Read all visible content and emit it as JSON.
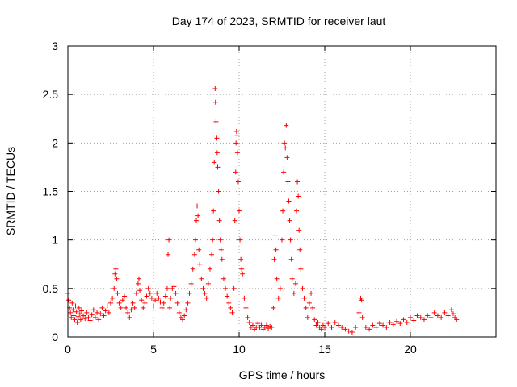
{
  "chart_data": {
    "type": "scatter",
    "title": "Day 174 of 2023, SRMTID for receiver laut",
    "xlabel": "GPS time / hours",
    "ylabel": "SRMTID / TECUs",
    "xlim": [
      0,
      25
    ],
    "ylim": [
      0,
      3
    ],
    "xticks": [
      0,
      5,
      10,
      15,
      20
    ],
    "xtick_labels": [
      "0",
      "5",
      "10",
      "15",
      "20"
    ],
    "yticks": [
      0,
      0.5,
      1,
      1.5,
      2,
      2.5,
      3
    ],
    "ytick_labels": [
      "0",
      "0.5",
      "1",
      "1.5",
      "2",
      "2.5",
      "3"
    ],
    "grid": true,
    "marker": "plus",
    "color": "#ff0000",
    "series": [
      {
        "name": "SRMTID",
        "points": [
          [
            0.0,
            0.45
          ],
          [
            0.05,
            0.38
          ],
          [
            0.1,
            0.3
          ],
          [
            0.15,
            0.25
          ],
          [
            0.2,
            0.2
          ],
          [
            0.25,
            0.35
          ],
          [
            0.3,
            0.28
          ],
          [
            0.35,
            0.22
          ],
          [
            0.4,
            0.18
          ],
          [
            0.45,
            0.32
          ],
          [
            0.5,
            0.26
          ],
          [
            0.55,
            0.15
          ],
          [
            0.6,
            0.21
          ],
          [
            0.65,
            0.3
          ],
          [
            0.7,
            0.24
          ],
          [
            0.75,
            0.18
          ],
          [
            0.8,
            0.27
          ],
          [
            0.9,
            0.22
          ],
          [
            1.0,
            0.19
          ],
          [
            1.1,
            0.25
          ],
          [
            1.2,
            0.2
          ],
          [
            1.3,
            0.17
          ],
          [
            1.4,
            0.23
          ],
          [
            1.5,
            0.28
          ],
          [
            1.6,
            0.2
          ],
          [
            1.7,
            0.25
          ],
          [
            1.8,
            0.18
          ],
          [
            1.9,
            0.24
          ],
          [
            2.0,
            0.3
          ],
          [
            2.1,
            0.22
          ],
          [
            2.2,
            0.27
          ],
          [
            2.3,
            0.32
          ],
          [
            2.4,
            0.25
          ],
          [
            2.5,
            0.35
          ],
          [
            2.6,
            0.4
          ],
          [
            2.7,
            0.5
          ],
          [
            2.75,
            0.65
          ],
          [
            2.8,
            0.7
          ],
          [
            2.85,
            0.6
          ],
          [
            2.9,
            0.45
          ],
          [
            3.0,
            0.35
          ],
          [
            3.1,
            0.3
          ],
          [
            3.2,
            0.38
          ],
          [
            3.3,
            0.42
          ],
          [
            3.4,
            0.3
          ],
          [
            3.5,
            0.25
          ],
          [
            3.6,
            0.2
          ],
          [
            3.7,
            0.28
          ],
          [
            3.8,
            0.35
          ],
          [
            3.9,
            0.3
          ],
          [
            4.0,
            0.45
          ],
          [
            4.1,
            0.55
          ],
          [
            4.15,
            0.6
          ],
          [
            4.2,
            0.48
          ],
          [
            4.3,
            0.38
          ],
          [
            4.4,
            0.3
          ],
          [
            4.5,
            0.35
          ],
          [
            4.6,
            0.42
          ],
          [
            4.7,
            0.5
          ],
          [
            4.8,
            0.45
          ],
          [
            4.9,
            0.4
          ],
          [
            5.0,
            0.32
          ],
          [
            5.1,
            0.38
          ],
          [
            5.2,
            0.45
          ],
          [
            5.3,
            0.4
          ],
          [
            5.4,
            0.36
          ],
          [
            5.5,
            0.3
          ],
          [
            5.6,
            0.35
          ],
          [
            5.7,
            0.42
          ],
          [
            5.8,
            0.5
          ],
          [
            5.85,
            0.85
          ],
          [
            5.9,
            1.0
          ],
          [
            5.95,
            0.3
          ],
          [
            6.0,
            0.4
          ],
          [
            6.1,
            0.5
          ],
          [
            6.2,
            0.52
          ],
          [
            6.3,
            0.45
          ],
          [
            6.4,
            0.35
          ],
          [
            6.5,
            0.25
          ],
          [
            6.6,
            0.2
          ],
          [
            6.7,
            0.18
          ],
          [
            6.8,
            0.22
          ],
          [
            6.9,
            0.28
          ],
          [
            7.0,
            0.35
          ],
          [
            7.1,
            0.45
          ],
          [
            7.2,
            0.55
          ],
          [
            7.3,
            0.7
          ],
          [
            7.4,
            0.85
          ],
          [
            7.45,
            1.0
          ],
          [
            7.5,
            1.2
          ],
          [
            7.55,
            1.35
          ],
          [
            7.6,
            1.25
          ],
          [
            7.65,
            0.9
          ],
          [
            7.7,
            0.75
          ],
          [
            7.8,
            0.6
          ],
          [
            7.9,
            0.5
          ],
          [
            8.0,
            0.45
          ],
          [
            8.1,
            0.4
          ],
          [
            8.2,
            0.55
          ],
          [
            8.3,
            0.7
          ],
          [
            8.4,
            0.85
          ],
          [
            8.45,
            1.0
          ],
          [
            8.5,
            1.3
          ],
          [
            8.55,
            1.8
          ],
          [
            8.6,
            2.56
          ],
          [
            8.62,
            2.42
          ],
          [
            8.65,
            2.22
          ],
          [
            8.7,
            2.05
          ],
          [
            8.72,
            1.9
          ],
          [
            8.75,
            1.75
          ],
          [
            8.8,
            1.5
          ],
          [
            8.85,
            1.2
          ],
          [
            8.9,
            1.0
          ],
          [
            8.95,
            0.9
          ],
          [
            9.0,
            0.8
          ],
          [
            9.1,
            0.6
          ],
          [
            9.2,
            0.5
          ],
          [
            9.3,
            0.42
          ],
          [
            9.4,
            0.35
          ],
          [
            9.5,
            0.3
          ],
          [
            9.6,
            0.25
          ],
          [
            9.7,
            0.5
          ],
          [
            9.75,
            1.2
          ],
          [
            9.8,
            1.7
          ],
          [
            9.82,
            2.0
          ],
          [
            9.85,
            2.12
          ],
          [
            9.88,
            2.08
          ],
          [
            9.9,
            1.9
          ],
          [
            9.95,
            1.6
          ],
          [
            10.0,
            1.3
          ],
          [
            10.05,
            1.0
          ],
          [
            10.1,
            0.8
          ],
          [
            10.15,
            0.7
          ],
          [
            10.2,
            0.65
          ],
          [
            10.3,
            0.4
          ],
          [
            10.4,
            0.3
          ],
          [
            10.5,
            0.2
          ],
          [
            10.6,
            0.15
          ],
          [
            10.7,
            0.1
          ],
          [
            10.8,
            0.12
          ],
          [
            10.9,
            0.08
          ],
          [
            11.0,
            0.1
          ],
          [
            11.1,
            0.14
          ],
          [
            11.2,
            0.1
          ],
          [
            11.3,
            0.12
          ],
          [
            11.4,
            0.08
          ],
          [
            11.5,
            0.1
          ],
          [
            11.6,
            0.12
          ],
          [
            11.7,
            0.09
          ],
          [
            11.8,
            0.11
          ],
          [
            11.9,
            0.1
          ],
          [
            12.0,
            0.3
          ],
          [
            12.05,
            0.8
          ],
          [
            12.1,
            1.05
          ],
          [
            12.15,
            0.9
          ],
          [
            12.2,
            0.6
          ],
          [
            12.3,
            0.4
          ],
          [
            12.4,
            0.5
          ],
          [
            12.5,
            1.0
          ],
          [
            12.55,
            1.3
          ],
          [
            12.6,
            1.7
          ],
          [
            12.65,
            2.0
          ],
          [
            12.7,
            1.95
          ],
          [
            12.75,
            2.18
          ],
          [
            12.8,
            1.85
          ],
          [
            12.85,
            1.6
          ],
          [
            12.9,
            1.4
          ],
          [
            12.95,
            1.2
          ],
          [
            13.0,
            1.0
          ],
          [
            13.05,
            0.8
          ],
          [
            13.1,
            0.6
          ],
          [
            13.2,
            0.45
          ],
          [
            13.3,
            0.55
          ],
          [
            13.35,
            1.3
          ],
          [
            13.4,
            1.6
          ],
          [
            13.45,
            1.45
          ],
          [
            13.5,
            1.1
          ],
          [
            13.55,
            0.9
          ],
          [
            13.6,
            0.7
          ],
          [
            13.7,
            0.5
          ],
          [
            13.8,
            0.4
          ],
          [
            13.9,
            0.3
          ],
          [
            14.0,
            0.2
          ],
          [
            14.1,
            0.35
          ],
          [
            14.2,
            0.45
          ],
          [
            14.3,
            0.3
          ],
          [
            14.4,
            0.18
          ],
          [
            14.5,
            0.12
          ],
          [
            14.6,
            0.15
          ],
          [
            14.7,
            0.1
          ],
          [
            14.8,
            0.08
          ],
          [
            14.9,
            0.12
          ],
          [
            15.0,
            0.1
          ],
          [
            15.2,
            0.14
          ],
          [
            15.4,
            0.1
          ],
          [
            15.6,
            0.15
          ],
          [
            15.8,
            0.12
          ],
          [
            16.0,
            0.1
          ],
          [
            16.2,
            0.08
          ],
          [
            16.4,
            0.06
          ],
          [
            16.6,
            0.05
          ],
          [
            16.8,
            0.1
          ],
          [
            17.0,
            0.25
          ],
          [
            17.1,
            0.4
          ],
          [
            17.15,
            0.38
          ],
          [
            17.2,
            0.2
          ],
          [
            17.4,
            0.1
          ],
          [
            17.6,
            0.08
          ],
          [
            17.8,
            0.12
          ],
          [
            18.0,
            0.1
          ],
          [
            18.2,
            0.14
          ],
          [
            18.4,
            0.12
          ],
          [
            18.6,
            0.1
          ],
          [
            18.8,
            0.15
          ],
          [
            19.0,
            0.13
          ],
          [
            19.2,
            0.16
          ],
          [
            19.4,
            0.14
          ],
          [
            19.6,
            0.18
          ],
          [
            19.8,
            0.15
          ],
          [
            20.0,
            0.2
          ],
          [
            20.2,
            0.17
          ],
          [
            20.4,
            0.22
          ],
          [
            20.6,
            0.2
          ],
          [
            20.8,
            0.18
          ],
          [
            21.0,
            0.22
          ],
          [
            21.2,
            0.2
          ],
          [
            21.4,
            0.25
          ],
          [
            21.6,
            0.22
          ],
          [
            21.8,
            0.2
          ],
          [
            22.0,
            0.25
          ],
          [
            22.2,
            0.22
          ],
          [
            22.4,
            0.28
          ],
          [
            22.5,
            0.24
          ],
          [
            22.6,
            0.2
          ],
          [
            22.7,
            0.18
          ]
        ]
      }
    ]
  }
}
